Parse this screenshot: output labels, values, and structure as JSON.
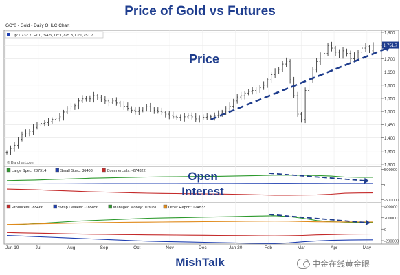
{
  "title": "Price of Gold vs Futures",
  "footer": "MishTalk",
  "watermark": "中金在线黄金眼",
  "colors": {
    "title": "#1f3e8f",
    "price": "#3a3a3a",
    "trend": "#1e3c8c",
    "large_spec": "#2e9a2e",
    "small_spec": "#1f3fb0",
    "commercials": "#c42a2a",
    "producers": "#c42a2a",
    "swap_dealers": "#1f3fb0",
    "managed_money": "#2e9a2e",
    "other_report": "#e08a1a"
  },
  "chart_data": [
    {
      "type": "line",
      "panel": "price",
      "header": "GC*0 - Gold - Daily OHLC Chart",
      "ohlc_legend": "Op:1,732.7, Hi:1,754.5, Lo:1,725.3, Cl:1,751.7",
      "last_price_label": "1,751.7",
      "annotation": "Price",
      "source": "© Barchart.com",
      "ylim": [
        1300,
        1800
      ],
      "ytick_labels": [
        "1,800",
        "1,750",
        "1,700",
        "1,650",
        "1,600",
        "1,550",
        "1,500",
        "1,450",
        "1,400",
        "1,350",
        "1,300"
      ],
      "x_labels": [
        "Jun 19",
        "Jul",
        "Aug",
        "Sep",
        "Oct",
        "Nov",
        "Dec",
        "Jan 20",
        "Feb",
        "Mar",
        "Apr",
        "May"
      ],
      "series": [
        {
          "values": [
            1345,
            1360,
            1372,
            1395,
            1412,
            1418,
            1425,
            1440,
            1445,
            1455,
            1458,
            1462,
            1470,
            1475,
            1480,
            1498,
            1510,
            1518,
            1522,
            1540,
            1548,
            1550,
            1548,
            1560,
            1552,
            1545,
            1540,
            1535,
            1540,
            1532,
            1528,
            1520,
            1512,
            1505,
            1500,
            1505,
            1510,
            1518,
            1510,
            1505,
            1500,
            1495,
            1490,
            1485,
            1480,
            1478,
            1476,
            1480,
            1485,
            1480,
            1472,
            1476,
            1478,
            1480,
            1480,
            1485,
            1490,
            1498,
            1510,
            1520,
            1540,
            1555,
            1560,
            1570,
            1575,
            1580,
            1585,
            1590,
            1600,
            1620,
            1640,
            1650,
            1660,
            1680,
            1690,
            1620,
            1560,
            1490,
            1470,
            1580,
            1620,
            1660,
            1690,
            1710,
            1720,
            1750,
            1740,
            1725,
            1710,
            1730,
            1720,
            1700,
            1710,
            1725,
            1740,
            1745,
            1730,
            1751.7
          ]
        }
      ],
      "trend_line": {
        "from": {
          "x": "Dec",
          "y": 1470
        },
        "to": {
          "x": "May",
          "y": 1745
        }
      }
    },
    {
      "type": "line",
      "panel": "open_interest_1",
      "annotation_line1": "Open",
      "annotation_line2": "Interest",
      "ytick_labels": [
        "500000",
        "0",
        "-500000"
      ],
      "ylim": [
        -600000,
        600000
      ],
      "legend": [
        {
          "name": "Large Spec",
          "value": "237914"
        },
        {
          "name": "Small Spec",
          "value": "36408"
        },
        {
          "name": "Commercials",
          "value": "-274322"
        }
      ],
      "series": [
        {
          "name": "Large Spec",
          "values": [
            130000,
            140000,
            150000,
            165000,
            180000,
            195000,
            210000,
            220000,
            230000,
            240000,
            250000,
            255000,
            260000,
            265000,
            270000,
            275000,
            280000,
            290000,
            300000,
            310000,
            310000,
            305000,
            300000,
            280000,
            250000,
            240000,
            237914
          ]
        },
        {
          "name": "Small Spec",
          "values": [
            20000,
            21000,
            22000,
            24000,
            26000,
            28000,
            30000,
            31000,
            32000,
            33000,
            34000,
            34500,
            35000,
            35500,
            36000,
            36500,
            37000,
            38000,
            39000,
            40000,
            40000,
            39000,
            38000,
            37000,
            36500,
            36400,
            36408
          ]
        },
        {
          "name": "Commercials",
          "values": [
            -150000,
            -160000,
            -170000,
            -190000,
            -205000,
            -222000,
            -240000,
            -250000,
            -262000,
            -273000,
            -284000,
            -290000,
            -295000,
            -300000,
            -306000,
            -311000,
            -317000,
            -327000,
            -338000,
            -350000,
            -350000,
            -344000,
            -338000,
            -317000,
            -286000,
            -276000,
            -274322
          ]
        }
      ]
    },
    {
      "type": "line",
      "panel": "open_interest_2",
      "ytick_labels": [
        "400000",
        "200000",
        "0",
        "-200000"
      ],
      "ylim": [
        -260000,
        460000
      ],
      "legend": [
        {
          "name": "Producers",
          "value": "-85466"
        },
        {
          "name": "Swap Dealers",
          "value": "-185856"
        },
        {
          "name": "Managed Money",
          "value": "113081"
        },
        {
          "name": "Other Report",
          "value": "124833"
        }
      ],
      "series": [
        {
          "name": "Producers",
          "values": [
            -60000,
            -65000,
            -70000,
            -75000,
            -80000,
            -85000,
            -90000,
            -92000,
            -95000,
            -97000,
            -100000,
            -102000,
            -104000,
            -106000,
            -108000,
            -110000,
            -112000,
            -114000,
            -116000,
            -118000,
            -115000,
            -110000,
            -100000,
            -95000,
            -90000,
            -87000,
            -85466
          ]
        },
        {
          "name": "Swap Dealers",
          "values": [
            -110000,
            -120000,
            -130000,
            -140000,
            -150000,
            -160000,
            -170000,
            -180000,
            -190000,
            -200000,
            -210000,
            -215000,
            -220000,
            -225000,
            -230000,
            -235000,
            -240000,
            -245000,
            -250000,
            -252000,
            -240000,
            -220000,
            -205000,
            -195000,
            -190000,
            -187000,
            -185856
          ]
        },
        {
          "name": "Managed Money",
          "values": [
            70000,
            80000,
            95000,
            110000,
            125000,
            140000,
            150000,
            160000,
            170000,
            180000,
            190000,
            195000,
            200000,
            205000,
            210000,
            215000,
            220000,
            225000,
            230000,
            235000,
            220000,
            190000,
            150000,
            130000,
            120000,
            115000,
            113081
          ]
        },
        {
          "name": "Other Report",
          "values": [
            80000,
            85000,
            90000,
            95000,
            100000,
            105000,
            110000,
            115000,
            118000,
            120000,
            122000,
            124000,
            126000,
            128000,
            130000,
            132000,
            134000,
            136000,
            138000,
            140000,
            138000,
            132000,
            128000,
            126000,
            125000,
            124900,
            124833
          ]
        }
      ]
    }
  ]
}
